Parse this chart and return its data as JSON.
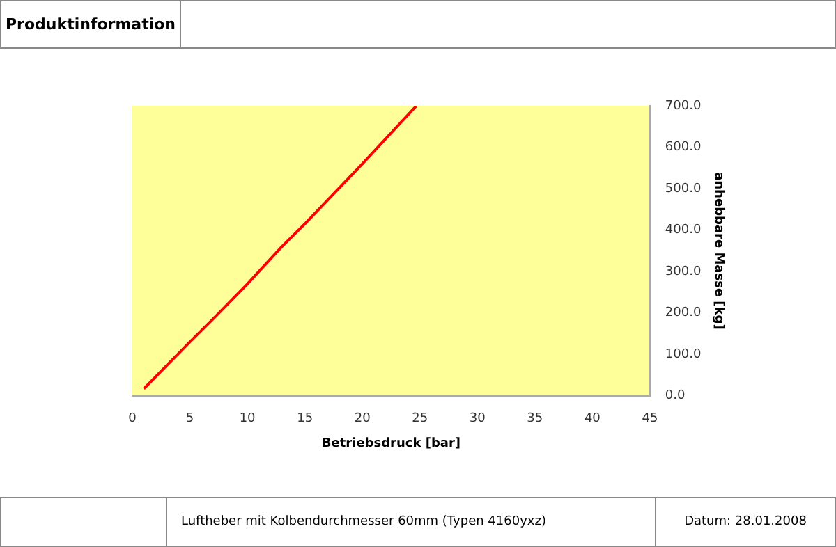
{
  "chart_data": {
    "type": "line",
    "title": "Produktinformation",
    "xlabel": "Betriebsdruck [bar]",
    "ylabel": "anhebbare Masse [kg]",
    "annotations": [
      "Luftheber mit Kolbendurchmesser 60mm (Typen 4160yxz)",
      "Datum: 28.01.2008"
    ],
    "series": [
      {
        "color": "#ff0000",
        "x": [
          1,
          5,
          7,
          10,
          11,
          13,
          15,
          20,
          24.7
        ],
        "values": [
          17,
          130,
          185,
          270,
          300,
          360,
          415,
          560,
          700
        ]
      }
    ],
    "xlim": [
      0,
      45
    ],
    "xticks": [
      0,
      5,
      10,
      15,
      20,
      25,
      30,
      35,
      40,
      45
    ],
    "ylim": [
      0,
      700
    ],
    "yticks": [
      {
        "value": 0,
        "label": "0.0"
      },
      {
        "value": 100,
        "label": "100.0"
      },
      {
        "value": 200,
        "label": "200.0"
      },
      {
        "value": 300,
        "label": "300.0"
      },
      {
        "value": 400,
        "label": "400.0"
      },
      {
        "value": 500,
        "label": "500.0"
      },
      {
        "value": 600,
        "label": "600.0"
      },
      {
        "value": 700,
        "label": "700.0"
      }
    ]
  }
}
